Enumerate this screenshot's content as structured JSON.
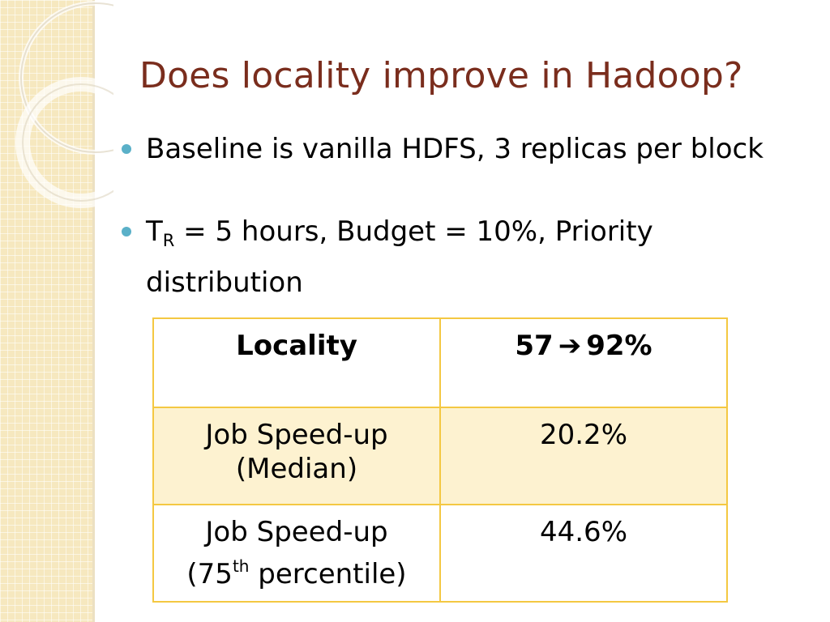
{
  "slide": {
    "title": "Does locality improve in Hadoop?",
    "bullets": [
      {
        "text": "Baseline is vanilla HDFS, 3 replicas per block"
      },
      {
        "prefix": "T",
        "subscript": "R",
        "text": " = 5 hours, Budget = 10%, Priority distribution"
      }
    ]
  },
  "table": {
    "rows": [
      {
        "label": "Locality",
        "value_from": "57",
        "arrow": "➔",
        "value_to": "92%"
      },
      {
        "label_line1": "Job Speed-up",
        "label_line2": "(Median)",
        "value": "20.2%"
      },
      {
        "label_line1": "Job Speed-up",
        "label_line2_pre": "(75",
        "label_line2_sup": "th",
        "label_line2_post": " percentile)",
        "value": "44.6%"
      }
    ]
  },
  "theme": {
    "title_color": "#7a2d1d",
    "bullet_color": "#5ab0c8",
    "table_border": "#f4c842",
    "table_alt_row": "#fdf2d0",
    "side_band": "#f6e8bf"
  }
}
